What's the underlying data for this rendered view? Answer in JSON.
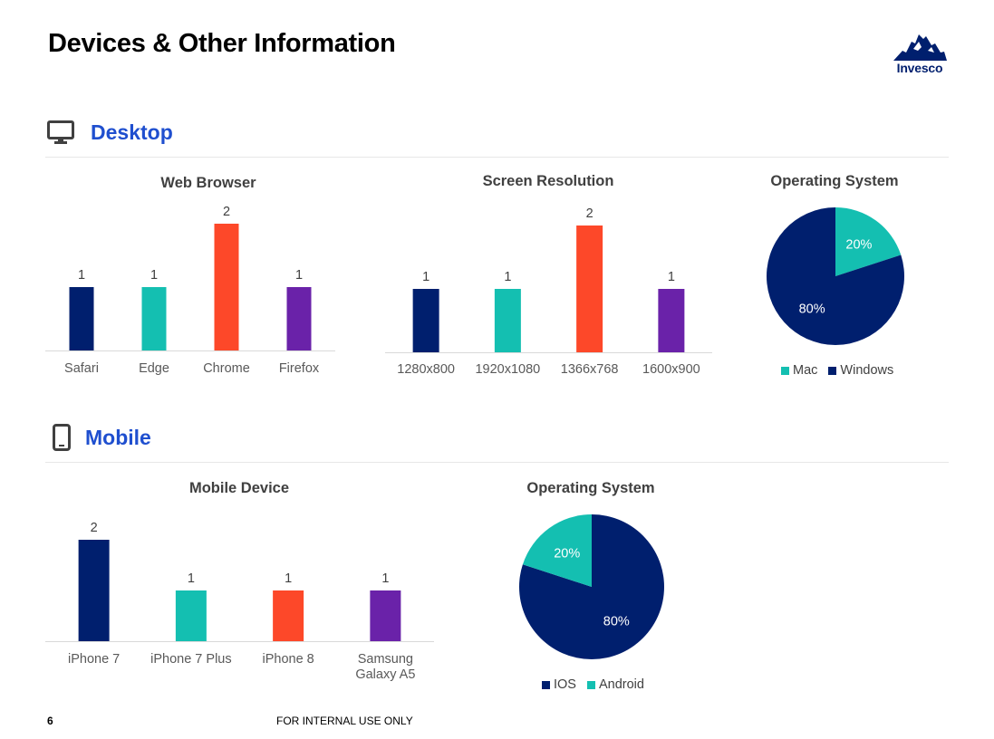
{
  "page": {
    "title": "Devices & Other Information",
    "logo_text": "Invesco",
    "page_number": "6",
    "footer_note": "FOR INTERNAL USE ONLY"
  },
  "sections": {
    "desktop": {
      "label": "Desktop",
      "icon": "desktop-monitor-icon"
    },
    "mobile": {
      "label": "Mobile",
      "icon": "mobile-phone-icon"
    }
  },
  "colors": {
    "navy": "#001f6e",
    "teal": "#14bfb1",
    "red": "#fd4829",
    "purple": "#6a22a9",
    "accent_blue": "#1f4fcf"
  },
  "chart_data": [
    {
      "id": "web_browser",
      "type": "bar",
      "title": "Web Browser",
      "categories": [
        "Safari",
        "Edge",
        "Chrome",
        "Firefox"
      ],
      "values": [
        1,
        1,
        2,
        1
      ],
      "bar_colors": [
        "#001f6e",
        "#14bfb1",
        "#fd4829",
        "#6a22a9"
      ],
      "ylim": [
        0,
        2
      ],
      "grid": false
    },
    {
      "id": "screen_resolution",
      "type": "bar",
      "title": "Screen Resolution",
      "categories": [
        "1280x800",
        "1920x1080",
        "1366x768",
        "1600x900"
      ],
      "values": [
        1,
        1,
        2,
        1
      ],
      "bar_colors": [
        "#001f6e",
        "#14bfb1",
        "#fd4829",
        "#6a22a9"
      ],
      "ylim": [
        0,
        2
      ],
      "grid": false
    },
    {
      "id": "desktop_os",
      "type": "pie",
      "title": "Operating System",
      "slices": [
        {
          "label": "Mac",
          "value": 20,
          "display": "20%",
          "color": "#14bfb1"
        },
        {
          "label": "Windows",
          "value": 80,
          "display": "80%",
          "color": "#001f6e"
        }
      ],
      "legend": "bottom"
    },
    {
      "id": "mobile_device",
      "type": "bar",
      "title": "Mobile Device",
      "categories": [
        "iPhone 7",
        "iPhone 7 Plus",
        "iPhone 8",
        "Samsung\nGalaxy A5"
      ],
      "values": [
        2,
        1,
        1,
        1
      ],
      "bar_colors": [
        "#001f6e",
        "#14bfb1",
        "#fd4829",
        "#6a22a9"
      ],
      "ylim": [
        0,
        2
      ],
      "grid": false
    },
    {
      "id": "mobile_os",
      "type": "pie",
      "title": "Operating System",
      "slices": [
        {
          "label": "IOS",
          "value": 80,
          "display": "80%",
          "color": "#001f6e"
        },
        {
          "label": "Android",
          "value": 20,
          "display": "20%",
          "color": "#14bfb1"
        }
      ],
      "legend": "bottom"
    }
  ]
}
